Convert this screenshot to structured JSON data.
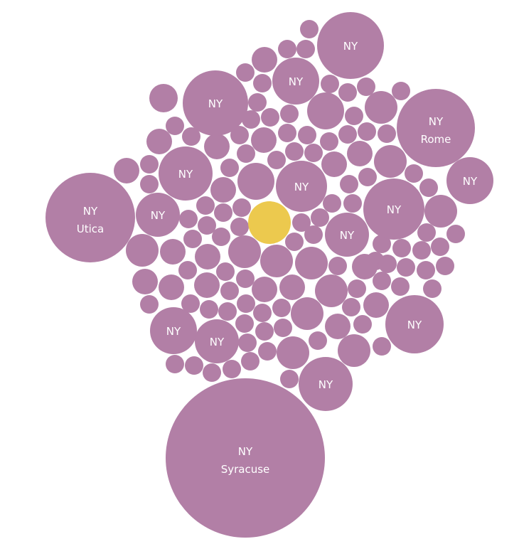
{
  "chart_data": {
    "type": "bubble",
    "colors": {
      "default": "#b27fa6",
      "highlight": "#ecc94e"
    },
    "labeled_bubbles": [
      {
        "line1": "NY",
        "line2": "Syracuse"
      },
      {
        "line1": "NY",
        "line2": "Utica"
      },
      {
        "line1": "NY",
        "line2": "Rome"
      },
      {
        "line1": "NY",
        "line2": ""
      },
      {
        "line1": "NY",
        "line2": ""
      },
      {
        "line1": "NY",
        "line2": ""
      },
      {
        "line1": "NY",
        "line2": ""
      },
      {
        "line1": "NY",
        "line2": ""
      },
      {
        "line1": "NY",
        "line2": ""
      },
      {
        "line1": "NY",
        "line2": ""
      },
      {
        "line1": "NY",
        "line2": ""
      },
      {
        "line1": "NY",
        "line2": ""
      },
      {
        "line1": "NY",
        "line2": ""
      },
      {
        "line1": "NY",
        "line2": ""
      },
      {
        "line1": "NY",
        "line2": ""
      },
      {
        "line1": "NY",
        "line2": ""
      }
    ],
    "highlighted_bubble": {
      "line1": "",
      "line2": ""
    }
  }
}
